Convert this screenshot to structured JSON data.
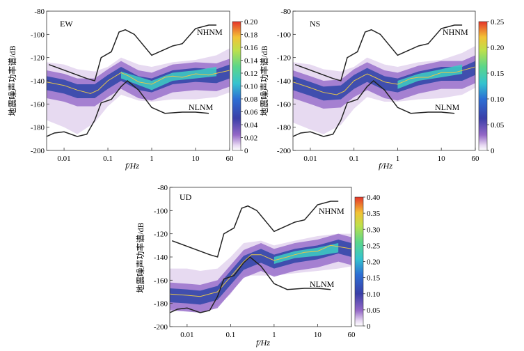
{
  "chart_data": [
    {
      "type": "heatmap",
      "panel": "EW",
      "title": "EW",
      "xlabel": "f/Hz",
      "ylabel": "地震噪声功率谱/dB",
      "xscale": "log",
      "xlim": [
        0.004,
        60
      ],
      "ylim": [
        -200,
        -80
      ],
      "xticks": [
        0.01,
        0.1,
        1,
        10,
        60
      ],
      "xtick_labels": [
        "0.01",
        "0.1",
        "1",
        "10",
        "60"
      ],
      "yticks": [
        -200,
        -180,
        -160,
        -140,
        -120,
        -100,
        -80
      ],
      "ytick_labels": [
        "-200",
        "-180",
        "-160",
        "-140",
        "-120",
        "-100",
        "-80"
      ],
      "colorbar": {
        "min": 0,
        "max": 0.2,
        "ticks": [
          0,
          0.02,
          0.04,
          0.06,
          0.08,
          0.1,
          0.12,
          0.14,
          0.16,
          0.18,
          0.2
        ],
        "tick_labels": [
          "0",
          "0.02",
          "0.04",
          "0.06",
          "0.08",
          "0.10",
          "0.12",
          "0.14",
          "0.16",
          "0.18",
          "0.20"
        ]
      },
      "mode_line": [
        [
          0.004,
          -141
        ],
        [
          0.01,
          -144
        ],
        [
          0.02,
          -148
        ],
        [
          0.04,
          -151
        ],
        [
          0.06,
          -148
        ],
        [
          0.1,
          -140
        ],
        [
          0.2,
          -133
        ],
        [
          0.3,
          -136
        ],
        [
          0.5,
          -141
        ],
        [
          1,
          -143
        ],
        [
          2,
          -137
        ],
        [
          3,
          -136
        ],
        [
          5,
          -137
        ],
        [
          10,
          -134
        ],
        [
          20,
          -135
        ],
        [
          60,
          -131
        ]
      ],
      "band": [
        [
          0.004,
          -174,
          -124
        ],
        [
          0.01,
          -180,
          -126
        ],
        [
          0.02,
          -186,
          -130
        ],
        [
          0.05,
          -176,
          -132
        ],
        [
          0.1,
          -162,
          -128
        ],
        [
          0.2,
          -152,
          -120
        ],
        [
          0.5,
          -157,
          -126
        ],
        [
          1,
          -158,
          -128
        ],
        [
          3,
          -156,
          -124
        ],
        [
          10,
          -156,
          -122
        ],
        [
          30,
          -154,
          -118
        ],
        [
          60,
          -150,
          -112
        ]
      ],
      "hot_band": [
        [
          0.2,
          -138,
          -132
        ],
        [
          1,
          -148,
          -140
        ],
        [
          3,
          -140,
          -133
        ],
        [
          10,
          -138,
          -131
        ],
        [
          30,
          -136,
          -128
        ]
      ],
      "nhnm_label": "NHNM",
      "nlnm_label": "NLNM"
    },
    {
      "type": "heatmap",
      "panel": "NS",
      "title": "NS",
      "xlabel": "f/Hz",
      "ylabel": "地震噪声功率谱/dB",
      "xscale": "log",
      "xlim": [
        0.004,
        60
      ],
      "ylim": [
        -200,
        -80
      ],
      "xticks": [
        0.01,
        0.1,
        1,
        10,
        60
      ],
      "xtick_labels": [
        "0.01",
        "0.1",
        "1",
        "10",
        "60"
      ],
      "yticks": [
        -200,
        -180,
        -160,
        -140,
        -120,
        -100,
        -80
      ],
      "ytick_labels": [
        "-200",
        "-180",
        "-160",
        "-140",
        "-120",
        "-100",
        "-80"
      ],
      "colorbar": {
        "min": 0,
        "max": 0.25,
        "ticks": [
          0,
          0.05,
          0.1,
          0.15,
          0.2,
          0.25
        ],
        "tick_labels": [
          "0",
          "0.05",
          "0.10",
          "0.15",
          "0.20",
          "0.25"
        ]
      },
      "mode_line": [
        [
          0.004,
          -141
        ],
        [
          0.01,
          -146
        ],
        [
          0.02,
          -150
        ],
        [
          0.04,
          -152
        ],
        [
          0.06,
          -149
        ],
        [
          0.1,
          -140
        ],
        [
          0.2,
          -134
        ],
        [
          0.3,
          -137
        ],
        [
          0.5,
          -141
        ],
        [
          1,
          -143
        ],
        [
          2,
          -138
        ],
        [
          3,
          -137
        ],
        [
          5,
          -137
        ],
        [
          10,
          -133
        ],
        [
          20,
          -133
        ],
        [
          60,
          -128
        ]
      ],
      "band": [
        [
          0.004,
          -176,
          -124
        ],
        [
          0.01,
          -182,
          -126
        ],
        [
          0.02,
          -186,
          -130
        ],
        [
          0.05,
          -178,
          -132
        ],
        [
          0.1,
          -164,
          -128
        ],
        [
          0.2,
          -154,
          -120
        ],
        [
          0.5,
          -158,
          -126
        ],
        [
          1,
          -158,
          -128
        ],
        [
          3,
          -156,
          -124
        ],
        [
          10,
          -155,
          -122
        ],
        [
          30,
          -152,
          -116
        ],
        [
          60,
          -146,
          -110
        ]
      ],
      "hot_band": [
        [
          1,
          -147,
          -140
        ],
        [
          3,
          -140,
          -134
        ],
        [
          10,
          -137,
          -130
        ],
        [
          30,
          -134,
          -126
        ]
      ],
      "nhnm_label": "NHNM",
      "nlnm_label": "NLNM"
    },
    {
      "type": "heatmap",
      "panel": "UD",
      "title": "UD",
      "xlabel": "f/Hz",
      "ylabel": "地震噪声功率谱/dB",
      "xscale": "log",
      "xlim": [
        0.004,
        60
      ],
      "ylim": [
        -200,
        -80
      ],
      "xticks": [
        0.01,
        0.1,
        1,
        10,
        60
      ],
      "xtick_labels": [
        "0.01",
        "0.1",
        "1",
        "10",
        "60"
      ],
      "yticks": [
        -200,
        -180,
        -160,
        -140,
        -120,
        -100,
        -80
      ],
      "ytick_labels": [
        "-200",
        "-180",
        "-160",
        "-140",
        "-120",
        "-100",
        "-80"
      ],
      "colorbar": {
        "min": 0,
        "max": 0.4,
        "ticks": [
          0,
          0.05,
          0.1,
          0.15,
          0.2,
          0.25,
          0.3,
          0.35,
          0.4
        ],
        "tick_labels": [
          "0",
          "0.05",
          "0.10",
          "0.15",
          "0.20",
          "0.25",
          "0.30",
          "0.35",
          "0.40"
        ]
      },
      "mode_line": [
        [
          0.004,
          -172
        ],
        [
          0.01,
          -173
        ],
        [
          0.02,
          -174
        ],
        [
          0.05,
          -170
        ],
        [
          0.1,
          -157
        ],
        [
          0.2,
          -144
        ],
        [
          0.3,
          -138
        ],
        [
          0.5,
          -138
        ],
        [
          1,
          -143
        ],
        [
          2,
          -140
        ],
        [
          3,
          -138
        ],
        [
          5,
          -136
        ],
        [
          10,
          -135
        ],
        [
          20,
          -130
        ],
        [
          60,
          -133
        ]
      ],
      "band": [
        [
          0.004,
          -184,
          -150
        ],
        [
          0.01,
          -186,
          -150
        ],
        [
          0.02,
          -188,
          -152
        ],
        [
          0.05,
          -182,
          -150
        ],
        [
          0.1,
          -172,
          -140
        ],
        [
          0.2,
          -156,
          -128
        ],
        [
          0.5,
          -156,
          -126
        ],
        [
          1,
          -156,
          -130
        ],
        [
          3,
          -154,
          -126
        ],
        [
          10,
          -152,
          -122
        ],
        [
          30,
          -150,
          -120
        ],
        [
          60,
          -148,
          -120
        ]
      ],
      "hot_band": [
        [
          1,
          -146,
          -140
        ],
        [
          3,
          -141,
          -135
        ],
        [
          10,
          -139,
          -132
        ],
        [
          30,
          -136,
          -128
        ]
      ],
      "nhnm_label": "NHNM",
      "nlnm_label": "NLNM"
    }
  ],
  "reference_models": {
    "nhnm": [
      [
        0.0045,
        -126
      ],
      [
        0.033,
        -138
      ],
      [
        0.05,
        -140
      ],
      [
        0.07,
        -120
      ],
      [
        0.12,
        -115
      ],
      [
        0.18,
        -98
      ],
      [
        0.25,
        -96
      ],
      [
        0.4,
        -100
      ],
      [
        1,
        -118
      ],
      [
        3,
        -110
      ],
      [
        5,
        -108
      ],
      [
        10,
        -95
      ],
      [
        20,
        -92
      ],
      [
        30,
        -92
      ]
    ],
    "nlnm": [
      [
        0.004,
        -188
      ],
      [
        0.006,
        -185
      ],
      [
        0.01,
        -184
      ],
      [
        0.02,
        -188
      ],
      [
        0.033,
        -186
      ],
      [
        0.05,
        -174
      ],
      [
        0.07,
        -159
      ],
      [
        0.12,
        -156
      ],
      [
        0.2,
        -145
      ],
      [
        0.28,
        -140
      ],
      [
        0.5,
        -148
      ],
      [
        1,
        -163
      ],
      [
        2,
        -168
      ],
      [
        5,
        -167
      ],
      [
        10,
        -167
      ],
      [
        20,
        -168
      ]
    ]
  }
}
